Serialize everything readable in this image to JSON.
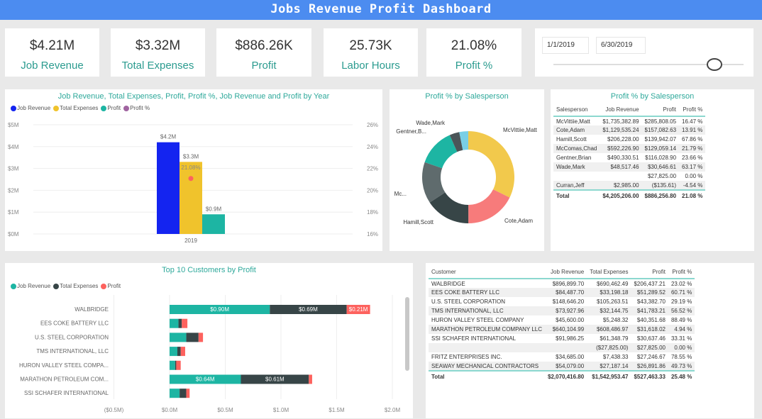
{
  "header": {
    "title": "Jobs Revenue Profit Dashboard"
  },
  "kpis": [
    {
      "value": "$4.21M",
      "label": "Job Revenue"
    },
    {
      "value": "$3.32M",
      "label": "Total Expenses"
    },
    {
      "value": "$886.26K",
      "label": "Profit"
    },
    {
      "value": "25.73K",
      "label": "Labor Hours"
    },
    {
      "value": "21.08%",
      "label": "Profit %"
    }
  ],
  "date_slicer": {
    "start": "1/1/2019",
    "end": "6/30/2019",
    "slider_position_fraction": 0.86
  },
  "colors": {
    "accent": "#2fa99b",
    "header": "#4c8cf0",
    "revenue": "#1424f0",
    "expenses": "#f0c32c",
    "profit": "#1db5a3",
    "profit_pct": "#fd625e"
  },
  "chart_data": [
    {
      "type": "bar",
      "title": "Job Revenue, Total Expenses, Profit, Profit %, Job Revenue and Profit by Year",
      "legend": [
        "Job Revenue",
        "Total Expenses",
        "Profit",
        "Profit %"
      ],
      "legend_placement": "top-left",
      "categories": [
        "2019"
      ],
      "series": [
        {
          "name": "Job Revenue",
          "values": [
            4.2
          ],
          "label": "$4.2M"
        },
        {
          "name": "Total Expenses",
          "values": [
            3.3
          ],
          "label": "$3.3M"
        },
        {
          "name": "Profit",
          "values": [
            0.9
          ],
          "label": "$0.9M"
        },
        {
          "name": "Profit %",
          "values": [
            21.08
          ],
          "label": "21.08%",
          "axis": "right"
        }
      ],
      "ylim": [
        0,
        5
      ],
      "y_ticks": [
        "$0M",
        "$1M",
        "$2M",
        "$3M",
        "$4M",
        "$5M"
      ],
      "y2lim": [
        16,
        26
      ],
      "y2_ticks": [
        "16%",
        "18%",
        "20%",
        "22%",
        "24%",
        "26%"
      ],
      "grid": true
    },
    {
      "type": "pie",
      "title": "Profit % by Salesperson",
      "labels": [
        "McVittiie,Matt",
        "Cote,Adam",
        "Hamill,Scott",
        "Mc...",
        "Gentner,B...",
        "Wade,Mark",
        ""
      ],
      "values": [
        285808.05,
        157082.63,
        139942.07,
        129059.14,
        116028.9,
        30646.61,
        27825.0
      ],
      "colors": [
        "#f2c94c",
        "#f77b7b",
        "#374547",
        "#5f6b6d",
        "#1db5a3",
        "#4b5558",
        "#79cfe6"
      ],
      "donut": true
    },
    {
      "type": "bar",
      "orientation": "horizontal-stacked",
      "title": "Top 10 Customers by Profit",
      "legend": [
        "Job Revenue",
        "Total Expenses",
        "Profit"
      ],
      "legend_placement": "top-left",
      "categories": [
        "WALBRIDGE",
        "EES COKE BATTERY LLC",
        "U.S. STEEL CORPORATION",
        "TMS INTERNATIONAL, LLC",
        "HURON VALLEY STEEL COMPA...",
        "MARATHON PETROLEUM COM...",
        "SSI SCHAFER INTERNATIONAL"
      ],
      "series": [
        {
          "name": "Job Revenue",
          "values": [
            0.9,
            0.08,
            0.15,
            0.07,
            0.05,
            0.64,
            0.09
          ],
          "labels": [
            "$0.90M",
            "",
            "",
            "",
            "",
            "$0.64M",
            ""
          ]
        },
        {
          "name": "Total Expenses",
          "values": [
            0.69,
            0.03,
            0.11,
            0.03,
            0.01,
            0.61,
            0.06
          ],
          "labels": [
            "$0.69M",
            "",
            "",
            "",
            "",
            "$0.61M",
            ""
          ]
        },
        {
          "name": "Profit",
          "values": [
            0.21,
            0.05,
            0.04,
            0.04,
            0.04,
            0.03,
            0.03
          ],
          "labels": [
            "$0.21M",
            "",
            "",
            "",
            "",
            "",
            ""
          ]
        }
      ],
      "xlim": [
        -0.5,
        2.0
      ],
      "x_ticks": [
        "($0.5M)",
        "$0.0M",
        "$0.5M",
        "$1.0M",
        "$1.5M",
        "$2.0M"
      ],
      "grid": true
    }
  ],
  "salesperson_table": {
    "title": "Profit % by Salesperson",
    "columns": [
      "Salesperson",
      "Job Revenue",
      "Profit",
      "Profit %"
    ],
    "rows": [
      [
        "McVittiie,Matt",
        "$1,735,382.89",
        "$285,808.05",
        "16.47 %"
      ],
      [
        "Cote,Adam",
        "$1,129,535.24",
        "$157,082.63",
        "13.91 %"
      ],
      [
        "Hamill,Scott",
        "$206,228.00",
        "$139,942.07",
        "67.86 %"
      ],
      [
        "McComas,Chad",
        "$592,226.90",
        "$129,059.14",
        "21.79 %"
      ],
      [
        "Gentner,Brian",
        "$490,330.51",
        "$116,028.90",
        "23.66 %"
      ],
      [
        "Wade,Mark",
        "$48,517.46",
        "$30,646.61",
        "63.17 %"
      ],
      [
        "",
        "",
        "$27,825.00",
        "0.00 %"
      ],
      [
        "Curran,Jeff",
        "$2,985.00",
        "($135.61)",
        "-4.54 %"
      ]
    ],
    "total": [
      "Total",
      "$4,205,206.00",
      "$886,256.80",
      "21.08 %"
    ]
  },
  "customer_table": {
    "columns": [
      "Customer",
      "Job Revenue",
      "Total Expenses",
      "Profit",
      "Profit %"
    ],
    "rows": [
      [
        "WALBRIDGE",
        "$896,899.70",
        "$690,462.49",
        "$206,437.21",
        "23.02 %"
      ],
      [
        "EES COKE BATTERY LLC",
        "$84,487.70",
        "$33,198.18",
        "$51,289.52",
        "60.71 %"
      ],
      [
        "U.S. STEEL CORPORATION",
        "$148,646.20",
        "$105,263.51",
        "$43,382.70",
        "29.19 %"
      ],
      [
        "TMS INTERNATIONAL, LLC",
        "$73,927.96",
        "$32,144.75",
        "$41,783.21",
        "56.52 %"
      ],
      [
        "HURON VALLEY STEEL COMPANY",
        "$45,600.00",
        "$5,248.32",
        "$40,351.68",
        "88.49 %"
      ],
      [
        "MARATHON PETROLEUM COMPANY LLC",
        "$640,104.99",
        "$608,486.97",
        "$31,618.02",
        "4.94 %"
      ],
      [
        "SSI SCHAFER INTERNATIONAL",
        "$91,986.25",
        "$61,348.79",
        "$30,637.46",
        "33.31 %"
      ],
      [
        "",
        "",
        "($27,825.00)",
        "$27,825.00",
        "0.00 %"
      ],
      [
        "FRITZ ENTERPRISES INC.",
        "$34,685.00",
        "$7,438.33",
        "$27,246.67",
        "78.55 %"
      ],
      [
        "SEAWAY MECHANICAL CONTRACTORS",
        "$54,079.00",
        "$27,187.14",
        "$26,891.86",
        "49.73 %"
      ]
    ],
    "total": [
      "Total",
      "$2,070,416.80",
      "$1,542,953.47",
      "$527,463.33",
      "25.48 %"
    ]
  }
}
